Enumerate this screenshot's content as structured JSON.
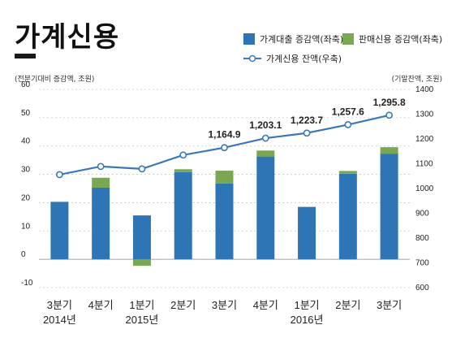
{
  "title": "가계신용",
  "left_axis_note": "(전분기대비 증감액, 조원)",
  "right_axis_note": "(기말잔액, 조원)",
  "legend": {
    "loans": "가계대출 증감액(좌축)",
    "sales": "판매신용 증감액(좌축)",
    "balance": "가계신용 잔액(우축)"
  },
  "colors": {
    "loans": "#2e75b6",
    "sales": "#7aa852",
    "line": "#3a78b8",
    "grid": "#c8c8c8"
  },
  "chart_data": {
    "type": "bar",
    "categories": [
      "3분기",
      "4분기",
      "1분기",
      "2분기",
      "3분기",
      "4분기",
      "1분기",
      "2분기",
      "3분기"
    ],
    "year_labels": [
      "2014년",
      "",
      "2015년",
      "",
      "",
      "",
      "2016년",
      "",
      ""
    ],
    "left_ticks": [
      "60",
      "50",
      "40",
      "30",
      "20",
      "10",
      "0",
      "-10"
    ],
    "left_ylim": [
      -10,
      60
    ],
    "right_ticks": [
      "1400",
      "1300",
      "1200",
      "1100",
      "1000",
      "900",
      "800",
      "700",
      "600"
    ],
    "right_ylim": [
      600,
      1400
    ],
    "series": [
      {
        "name": "가계대출 증감액(좌축)",
        "values": [
          20.3,
          25.3,
          15.5,
          30.8,
          26.8,
          36.3,
          18.5,
          30.2,
          37.3
        ]
      },
      {
        "name": "판매신용 증감액(좌축)",
        "values": [
          0.0,
          3.5,
          -2.3,
          1.0,
          4.5,
          2.1,
          0.0,
          1.0,
          2.3
        ]
      }
    ],
    "line": {
      "name": "가계신용 잔액(우축)",
      "values": [
        1056,
        1089,
        1079,
        1135,
        1164.9,
        1203.1,
        1223.7,
        1257.6,
        1295.8
      ],
      "labels": [
        "",
        "",
        "",
        "",
        "1,164.9",
        "1,203.1",
        "1,223.7",
        "1,257.6",
        "1,295.8"
      ]
    }
  }
}
